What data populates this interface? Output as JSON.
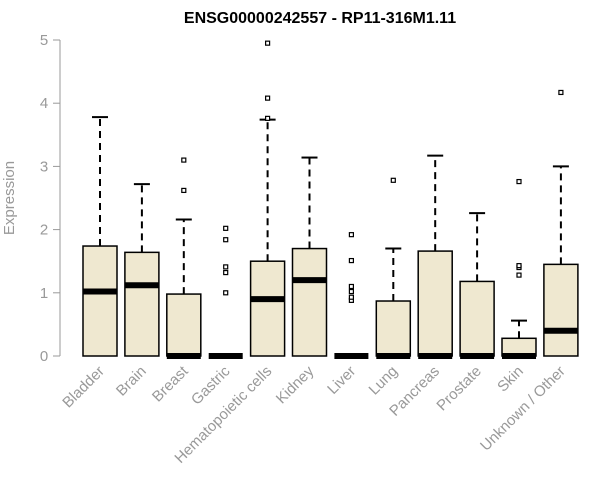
{
  "chart_data": {
    "type": "boxplot",
    "title": "ENSG00000242557 - RP11-316M1.11",
    "ylabel": "Expression",
    "xlabel": "",
    "ylim": [
      0,
      5
    ],
    "yticks": [
      0,
      1,
      2,
      3,
      4,
      5
    ],
    "grid": false,
    "box_color": "#efe8d0",
    "categories": [
      "Bladder",
      "Brain",
      "Breast",
      "Gastric",
      "Hematopoietic cells",
      "Kidney",
      "Liver",
      "Lung",
      "Pancreas",
      "Prostate",
      "Skin",
      "Unknown / Other"
    ],
    "boxes": [
      {
        "min": 0,
        "q1": 0,
        "median": 1.02,
        "q3": 1.74,
        "max": 3.78,
        "outliers": []
      },
      {
        "min": 0,
        "q1": 0,
        "median": 1.12,
        "q3": 1.64,
        "max": 2.72,
        "outliers": []
      },
      {
        "min": 0,
        "q1": 0,
        "median": 0,
        "q3": 0.98,
        "max": 2.16,
        "outliers": [
          2.62,
          3.1
        ]
      },
      {
        "min": 0,
        "q1": 0,
        "median": 0,
        "q3": 0,
        "max": 0,
        "outliers": [
          1.0,
          1.32,
          1.41,
          1.84,
          2.02
        ]
      },
      {
        "min": 0,
        "q1": 0,
        "median": 0.9,
        "q3": 1.5,
        "max": 3.74,
        "outliers": [
          3.76,
          4.08,
          4.95
        ]
      },
      {
        "min": 0,
        "q1": 0,
        "median": 1.2,
        "q3": 1.7,
        "max": 3.14,
        "outliers": []
      },
      {
        "min": 0,
        "q1": 0,
        "median": 0,
        "q3": 0,
        "max": 0,
        "outliers": [
          0.88,
          0.93,
          1.02,
          1.1,
          1.51,
          1.92
        ]
      },
      {
        "min": 0,
        "q1": 0,
        "median": 0,
        "q3": 0.87,
        "max": 1.7,
        "outliers": [
          2.78
        ]
      },
      {
        "min": 0,
        "q1": 0,
        "median": 0,
        "q3": 1.66,
        "max": 3.17,
        "outliers": []
      },
      {
        "min": 0,
        "q1": 0,
        "median": 0,
        "q3": 1.18,
        "max": 2.26,
        "outliers": []
      },
      {
        "min": 0,
        "q1": 0,
        "median": 0,
        "q3": 0.28,
        "max": 0.56,
        "outliers": [
          1.28,
          1.4,
          1.43,
          2.76
        ]
      },
      {
        "min": 0,
        "q1": 0,
        "median": 0.4,
        "q3": 1.45,
        "max": 3.0,
        "outliers": [
          4.17
        ]
      }
    ]
  }
}
